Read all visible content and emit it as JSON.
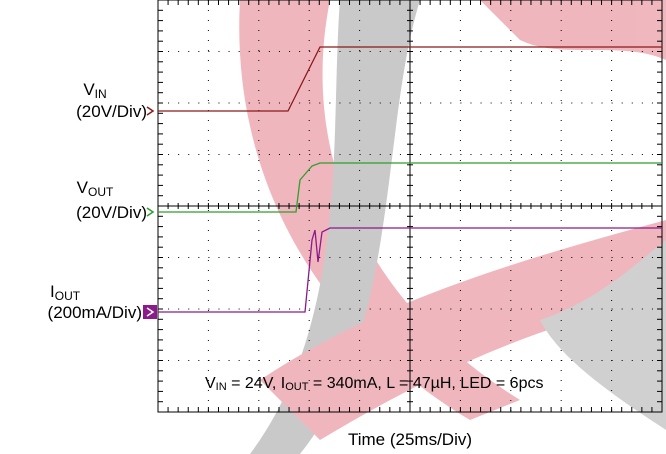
{
  "channels": [
    {
      "symbol": "V",
      "subscript": "IN",
      "scale": "(20V/Div)"
    },
    {
      "symbol": "V",
      "subscript": "OUT",
      "scale": "(20V/Div)"
    },
    {
      "symbol": "I",
      "subscript": "OUT",
      "scale": "(200mA/Div)"
    }
  ],
  "conditions": [
    "V",
    "IN",
    " = 24V, ",
    "I",
    "OUT",
    " = 340mA, L = 47µH, LED = 6pcs"
  ],
  "x_label": "Time (25ms/Div)"
}
